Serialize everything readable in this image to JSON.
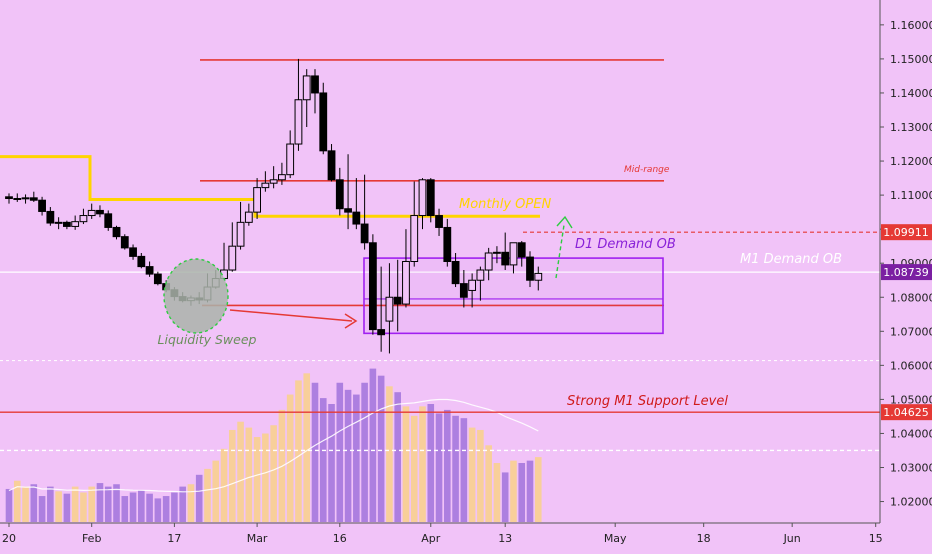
{
  "chart_data": {
    "type": "candlestick",
    "title": "",
    "xlabel": "",
    "ylabel": "",
    "ylim": [
      1.0137,
      1.1673
    ],
    "grid": false,
    "dates": [
      "Jan 20",
      "Jan 21",
      "Jan 22",
      "Jan 23",
      "Jan 24",
      "Jan 27",
      "Jan 28",
      "Jan 29",
      "Jan 30",
      "Jan 31",
      "Feb 3",
      "Feb 4",
      "Feb 5",
      "Feb 6",
      "Feb 7",
      "Feb 10",
      "Feb 11",
      "Feb 12",
      "Feb 13",
      "Feb 14",
      "Feb 17",
      "Feb 18",
      "Feb 19",
      "Feb 20",
      "Feb 21",
      "Feb 24",
      "Feb 25",
      "Feb 26",
      "Feb 27",
      "Feb 28",
      "Mar 2",
      "Mar 3",
      "Mar 4",
      "Mar 5",
      "Mar 6",
      "Mar 9",
      "Mar 10",
      "Mar 11",
      "Mar 12",
      "Mar 13",
      "Mar 16",
      "Mar 17",
      "Mar 18",
      "Mar 19",
      "Mar 20",
      "Mar 23",
      "Mar 24",
      "Mar 25",
      "Mar 26",
      "Mar 27",
      "Mar 30",
      "Mar 31",
      "Apr 1",
      "Apr 2",
      "Apr 3",
      "Apr 6",
      "Apr 7",
      "Apr 8",
      "Apr 9",
      "Apr 10",
      "Apr 13",
      "Apr 14",
      "Apr 15",
      "Apr 16",
      "Apr 17"
    ],
    "open": [
      1.1095,
      1.109,
      1.109,
      1.1092,
      1.1085,
      1.1052,
      1.1018,
      1.102,
      1.1008,
      1.1022,
      1.104,
      1.1055,
      1.1045,
      1.1005,
      1.0978,
      1.0945,
      1.092,
      1.089,
      1.0868,
      1.084,
      1.0822,
      1.0802,
      1.079,
      1.0798,
      1.0792,
      1.083,
      1.0855,
      1.088,
      1.095,
      1.102,
      1.105,
      1.1122,
      1.1135,
      1.1145,
      1.116,
      1.125,
      1.138,
      1.145,
      1.14,
      1.123,
      1.1145,
      1.106,
      1.105,
      1.1015,
      1.096,
      1.0705,
      1.073,
      1.08,
      1.078,
      1.0905,
      1.104,
      1.1145,
      1.104,
      1.1005,
      1.0905,
      1.084,
      1.082,
      1.085,
      1.088,
      1.093,
      1.0932,
      1.0895,
      1.096,
      1.0918,
      1.085
    ],
    "high": [
      1.1105,
      1.1105,
      1.1102,
      1.111,
      1.1095,
      1.1065,
      1.1035,
      1.1025,
      1.104,
      1.106,
      1.1075,
      1.107,
      1.1055,
      1.101,
      1.0985,
      1.0955,
      1.093,
      1.0905,
      1.0875,
      1.085,
      1.083,
      1.0815,
      1.0805,
      1.0815,
      1.087,
      1.088,
      1.096,
      1.102,
      1.108,
      1.1075,
      1.115,
      1.117,
      1.1185,
      1.1195,
      1.129,
      1.15,
      1.147,
      1.147,
      1.143,
      1.125,
      1.118,
      1.122,
      1.115,
      1.116,
      1.0985,
      1.089,
      1.09,
      1.091,
      1.1,
      1.114,
      1.115,
      1.115,
      1.106,
      1.103,
      1.093,
      1.088,
      1.087,
      1.089,
      1.0945,
      1.095,
      1.099,
      1.095,
      1.0965,
      1.0935,
      1.089
    ],
    "low": [
      1.1075,
      1.108,
      1.1075,
      1.108,
      1.104,
      1.101,
      1.1,
      1.1,
      1.0998,
      1.1015,
      1.103,
      1.1035,
      1.0995,
      1.097,
      1.094,
      1.091,
      1.0885,
      1.086,
      1.0835,
      1.0815,
      1.079,
      1.0785,
      1.0775,
      1.078,
      1.0785,
      1.0825,
      1.085,
      1.0875,
      1.094,
      1.101,
      1.103,
      1.111,
      1.112,
      1.113,
      1.115,
      1.123,
      1.13,
      1.134,
      1.122,
      1.114,
      1.104,
      1.1,
      1.1,
      1.094,
      1.069,
      1.064,
      1.0635,
      1.07,
      1.077,
      1.089,
      1.1,
      1.102,
      1.098,
      1.089,
      1.083,
      1.077,
      1.077,
      1.079,
      1.085,
      1.09,
      1.088,
      1.087,
      1.089,
      1.083,
      1.082
    ],
    "close": [
      1.109,
      1.109,
      1.1092,
      1.1085,
      1.1052,
      1.1018,
      1.102,
      1.1008,
      1.1022,
      1.104,
      1.1055,
      1.1045,
      1.1005,
      1.0978,
      1.0945,
      1.092,
      1.089,
      1.0868,
      1.084,
      1.0822,
      1.0802,
      1.079,
      1.0798,
      1.0792,
      1.083,
      1.0855,
      1.088,
      1.095,
      1.102,
      1.105,
      1.1122,
      1.1135,
      1.1145,
      1.116,
      1.125,
      1.138,
      1.145,
      1.14,
      1.123,
      1.1145,
      1.106,
      1.105,
      1.1015,
      1.096,
      1.0705,
      1.069,
      1.08,
      1.078,
      1.0905,
      1.104,
      1.1145,
      1.104,
      1.1005,
      1.0905,
      1.084,
      1.08,
      1.085,
      1.088,
      1.093,
      1.0932,
      1.0895,
      1.096,
      1.0918,
      1.085,
      1.087
    ],
    "volume": [
      0.28,
      0.35,
      0.3,
      0.32,
      0.22,
      0.3,
      0.26,
      0.24,
      0.3,
      0.25,
      0.3,
      0.33,
      0.3,
      0.32,
      0.22,
      0.25,
      0.27,
      0.24,
      0.2,
      0.22,
      0.25,
      0.3,
      0.32,
      0.4,
      0.45,
      0.52,
      0.62,
      0.78,
      0.85,
      0.8,
      0.72,
      0.75,
      0.82,
      0.95,
      1.08,
      1.2,
      1.26,
      1.18,
      1.05,
      1.0,
      1.18,
      1.12,
      1.08,
      1.18,
      1.3,
      1.24,
      1.15,
      1.1,
      0.98,
      0.9,
      0.98,
      1.0,
      0.92,
      0.95,
      0.9,
      0.88,
      0.8,
      0.78,
      0.65,
      0.5,
      0.42,
      0.52,
      0.5,
      0.52,
      0.55
    ],
    "x_ticks": [
      {
        "label": "20",
        "at": 0
      },
      {
        "label": "Feb",
        "at": 10
      },
      {
        "label": "17",
        "at": 20
      },
      {
        "label": "Mar",
        "at": 30
      },
      {
        "label": "16",
        "at": 40
      },
      {
        "label": "Apr",
        "at": 51
      },
      {
        "label": "13",
        "at": 60
      },
      {
        "label": "May",
        "at": 73.3
      },
      {
        "label": "18",
        "at": 84
      },
      {
        "label": "Jun",
        "at": 94.7
      },
      {
        "label": "15",
        "at": 104.8
      }
    ],
    "y_ticks": [
      "1.16000",
      "1.15000",
      "1.14000",
      "1.13000",
      "1.12000",
      "1.11000",
      "1.10000",
      "1.09000",
      "1.08000",
      "1.07000",
      "1.06000",
      "1.05000",
      "1.04000",
      "1.03000",
      "1.02000"
    ],
    "price_labels": [
      {
        "text": "1.09911",
        "value": 1.09911,
        "color": "#e53935"
      },
      {
        "text": "1.08739",
        "value": 1.08739,
        "color": "#7b1fa2"
      },
      {
        "text": "1.04625",
        "value": 1.04625,
        "color": "#e53935"
      }
    ],
    "annotations": {
      "liquidity_sweep": "Liquidity Sweep",
      "d1_demand_ob": "D1 Demand OB",
      "m1_demand_ob": "M1 Demand OB",
      "monthly_open": "Monthly OPEN",
      "mid_range": "Mid-range",
      "strong_support": "Strong M1 Support Level"
    },
    "levels": {
      "range_high": 1.1497,
      "mid_range": 1.1142,
      "monthly_open_early": [
        1.1213,
        1.1087
      ],
      "monthly_open_late": [
        1.1095,
        1.1038
      ],
      "m1_demand_ob": 1.08739,
      "sweep_low": 1.0776,
      "d1_ob_top": 1.0915,
      "d1_ob_bottom": 1.0694,
      "d1_ob_inner": 1.0795,
      "dashed_target": 1.09911,
      "strong_support": 1.04625,
      "dashed_low": 1.0614,
      "dashed_volume": 1.035
    },
    "colors": {
      "background": "#f1c3f8",
      "candle": "#000000",
      "red_line": "#e53935",
      "yellow": "#ffd400",
      "purple": "#a020f0",
      "green": "#2ecc40",
      "volume_up": "#f8cf9a",
      "volume_down": "#ad7fe0"
    }
  }
}
